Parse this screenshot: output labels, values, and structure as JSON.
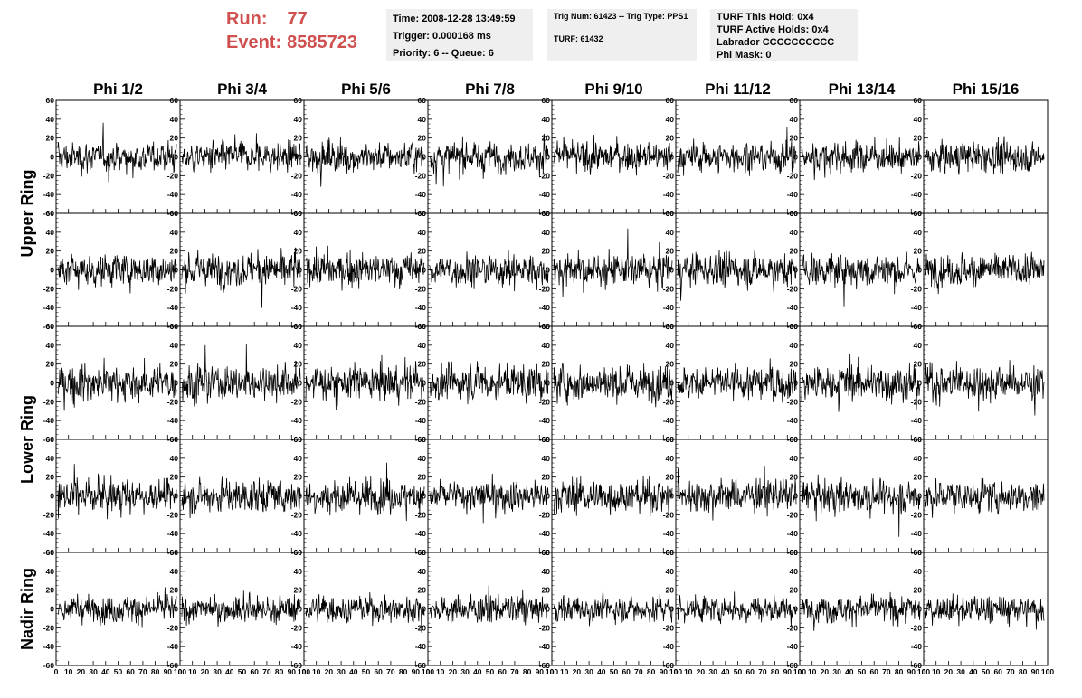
{
  "header": {
    "run_label": "Run:",
    "run_value": "77",
    "event_label": "Event:",
    "event_value": "8585723",
    "time_line": "Time: 2008-12-28 13:49:59",
    "trigger_line": "Trigger: 0.000168 ms",
    "priority_line": "Priority: 6 -- Queue: 6",
    "trig_line": "Trig Num: 61423 -- Trig Type: PPS1",
    "turf_line": "TURF: 61432",
    "turf_hold_line": "TURF This Hold: 0x4",
    "turf_active_line": "TURF Active Holds: 0x4",
    "labrador_line": "Labrador CCCCCCCCCC",
    "phi_mask_line": "Phi Mask: 0",
    "accent_color": "#d05050"
  },
  "chart_data": {
    "type": "line",
    "columns": [
      "Phi 1/2",
      "Phi 3/4",
      "Phi 5/6",
      "Phi 7/8",
      "Phi 9/10",
      "Phi 11/12",
      "Phi 13/14",
      "Phi 15/16"
    ],
    "ring_labels": [
      {
        "text": "Upper Ring",
        "rows": [
          0,
          1
        ]
      },
      {
        "text": "Lower Ring",
        "rows": [
          2,
          3
        ]
      },
      {
        "text": "Nadir Ring",
        "rows": [
          4,
          4
        ]
      }
    ],
    "rows": 5,
    "xlim": [
      0,
      100
    ],
    "ylim": [
      -60,
      60
    ],
    "yticks": [
      -60,
      -40,
      -20,
      0,
      20,
      40,
      60
    ],
    "xticks": [
      0,
      10,
      20,
      30,
      40,
      50,
      60,
      70,
      80,
      90,
      100
    ],
    "samples_per_panel": 260,
    "line_color": "#000000",
    "amplitude_rms_by_row": [
      10,
      11,
      12,
      11,
      9
    ],
    "series_note": "Each panel shows a noise waveform with amplitude mostly within -40 to 40"
  }
}
